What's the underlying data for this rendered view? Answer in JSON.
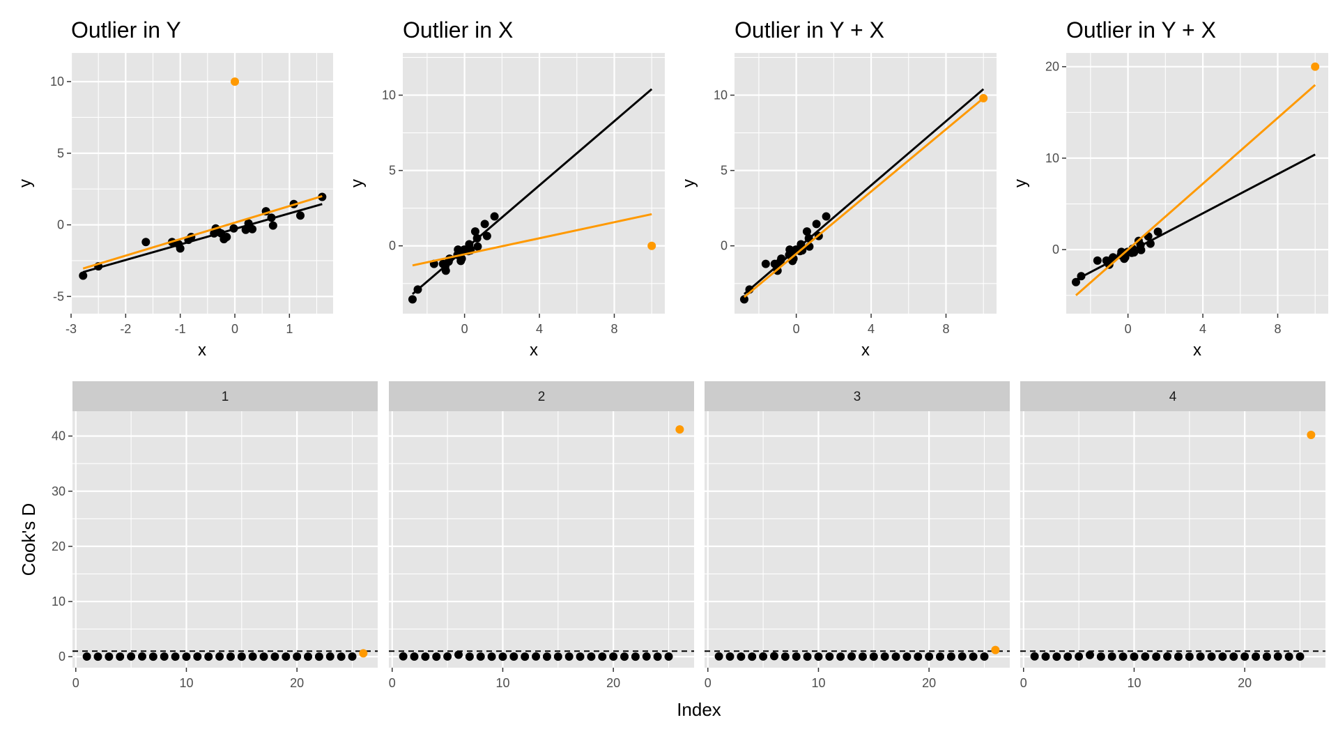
{
  "colors": {
    "panel_bg": "#e5e5e5",
    "grid": "#ffffff",
    "strip_bg": "#cccccc",
    "point": "#000000",
    "outlier": "#ff9900",
    "fit_all": "#ff9900",
    "fit_without": "#000000",
    "axis_text": "#4d4d4d",
    "title_text": "#000000"
  },
  "chart_data": [
    {
      "type": "scatter",
      "title": "Outlier in Y",
      "xlabel": "x",
      "ylabel": "y",
      "xlim": [
        -3.0,
        1.8
      ],
      "ylim": [
        -6.2,
        12.0
      ],
      "xticks": [
        -3,
        -2,
        -1,
        0,
        1
      ],
      "yticks": [
        -5,
        0,
        5,
        10
      ],
      "x": [
        -2.78,
        -2.5,
        -1.63,
        -1.15,
        -1.03,
        -1.0,
        -0.85,
        -0.8,
        -0.38,
        -0.35,
        -0.3,
        -0.25,
        -0.2,
        -0.15,
        -0.02,
        0.2,
        0.25,
        0.28,
        0.32,
        0.57,
        0.67,
        0.7,
        1.08,
        1.2,
        1.6
      ],
      "y": [
        -3.55,
        -2.9,
        -1.2,
        -1.2,
        -1.35,
        -1.65,
        -1.05,
        -0.85,
        -0.6,
        -0.25,
        -0.5,
        -0.6,
        -1.0,
        -0.85,
        -0.25,
        -0.35,
        0.1,
        -0.2,
        -0.3,
        0.95,
        0.5,
        -0.05,
        1.45,
        0.65,
        1.95
      ],
      "outlier": {
        "x": 0.0,
        "y": 10.0
      },
      "fit_all": {
        "x": [
          -2.78,
          1.6
        ],
        "y": [
          -3.05,
          2.0
        ]
      },
      "fit_without": {
        "x": [
          -2.78,
          1.6
        ],
        "y": [
          -3.3,
          1.45
        ]
      }
    },
    {
      "type": "scatter",
      "title": "Outlier in X",
      "xlabel": "x",
      "ylabel": "y",
      "xlim": [
        -3.3,
        10.7
      ],
      "ylim": [
        -4.5,
        12.8
      ],
      "xticks": [
        0,
        4,
        8
      ],
      "yticks": [
        0,
        5,
        10
      ],
      "x": [
        -2.78,
        -2.5,
        -1.63,
        -1.15,
        -1.03,
        -1.0,
        -0.85,
        -0.8,
        -0.38,
        -0.35,
        -0.3,
        -0.25,
        -0.2,
        -0.15,
        -0.02,
        0.2,
        0.25,
        0.28,
        0.32,
        0.57,
        0.67,
        0.7,
        1.08,
        1.2,
        1.6
      ],
      "y": [
        -3.55,
        -2.9,
        -1.2,
        -1.2,
        -1.35,
        -1.65,
        -1.05,
        -0.85,
        -0.6,
        -0.25,
        -0.5,
        -0.6,
        -1.0,
        -0.85,
        -0.25,
        -0.35,
        0.1,
        -0.2,
        -0.3,
        0.95,
        0.5,
        -0.05,
        1.45,
        0.65,
        1.95
      ],
      "outlier": {
        "x": 10.0,
        "y": 0.0
      },
      "fit_all": {
        "x": [
          -2.78,
          10.0
        ],
        "y": [
          -1.3,
          2.1
        ]
      },
      "fit_without": {
        "x": [
          -2.78,
          10.0
        ],
        "y": [
          -3.2,
          10.4
        ]
      }
    },
    {
      "type": "scatter",
      "title": "Outlier in Y + X",
      "xlabel": "x",
      "ylabel": "y",
      "xlim": [
        -3.3,
        10.7
      ],
      "ylim": [
        -4.5,
        12.8
      ],
      "xticks": [
        0,
        4,
        8
      ],
      "yticks": [
        0,
        5,
        10
      ],
      "x": [
        -2.78,
        -2.5,
        -1.63,
        -1.15,
        -1.03,
        -1.0,
        -0.85,
        -0.8,
        -0.38,
        -0.35,
        -0.3,
        -0.25,
        -0.2,
        -0.15,
        -0.02,
        0.2,
        0.25,
        0.28,
        0.32,
        0.57,
        0.67,
        0.7,
        1.08,
        1.2,
        1.6
      ],
      "y": [
        -3.55,
        -2.9,
        -1.2,
        -1.2,
        -1.35,
        -1.65,
        -1.05,
        -0.85,
        -0.6,
        -0.25,
        -0.5,
        -0.6,
        -1.0,
        -0.85,
        -0.25,
        -0.35,
        0.1,
        -0.2,
        -0.3,
        0.95,
        0.5,
        -0.05,
        1.45,
        0.65,
        1.95
      ],
      "outlier": {
        "x": 10.0,
        "y": 9.8
      },
      "fit_all": {
        "x": [
          -2.78,
          10.0
        ],
        "y": [
          -3.4,
          9.8
        ]
      },
      "fit_without": {
        "x": [
          -2.78,
          10.0
        ],
        "y": [
          -3.2,
          10.4
        ]
      }
    },
    {
      "type": "scatter",
      "title": "Outlier in Y + X",
      "xlabel": "x",
      "ylabel": "y",
      "xlim": [
        -3.3,
        10.7
      ],
      "ylim": [
        -7.0,
        21.5
      ],
      "xticks": [
        0,
        4,
        8
      ],
      "yticks": [
        0,
        10,
        20
      ],
      "x": [
        -2.78,
        -2.5,
        -1.63,
        -1.15,
        -1.03,
        -1.0,
        -0.85,
        -0.8,
        -0.38,
        -0.35,
        -0.3,
        -0.25,
        -0.2,
        -0.15,
        -0.02,
        0.2,
        0.25,
        0.28,
        0.32,
        0.57,
        0.67,
        0.7,
        1.08,
        1.2,
        1.6
      ],
      "y": [
        -3.55,
        -2.9,
        -1.2,
        -1.2,
        -1.35,
        -1.65,
        -1.05,
        -0.85,
        -0.6,
        -0.25,
        -0.5,
        -0.6,
        -1.0,
        -0.85,
        -0.25,
        -0.35,
        0.1,
        -0.2,
        -0.3,
        0.95,
        0.5,
        -0.05,
        1.45,
        0.65,
        1.95
      ],
      "outlier": {
        "x": 10.0,
        "y": 20.0
      },
      "fit_all": {
        "x": [
          -2.78,
          10.0
        ],
        "y": [
          -5.0,
          18.0
        ]
      },
      "fit_without": {
        "x": [
          -2.78,
          10.0
        ],
        "y": [
          -3.3,
          10.4
        ]
      }
    },
    {
      "type": "scatter",
      "facets": [
        "1",
        "2",
        "3",
        "4"
      ],
      "xlabel": "Index",
      "ylabel": "Cook's D",
      "xlim": [
        -0.3,
        27.3
      ],
      "ylim": [
        -2.0,
        44.5
      ],
      "xticks": [
        0,
        10,
        20
      ],
      "yticks": [
        0,
        10,
        20,
        30,
        40
      ],
      "reference_line": 1.0,
      "series": [
        {
          "values": [
            0.02,
            0.01,
            0.0,
            0.01,
            0.03,
            0.04,
            0.0,
            0.02,
            0.01,
            0.0,
            0.02,
            0.01,
            0.03,
            0.0,
            0.01,
            0.02,
            0.0,
            0.01,
            0.0,
            0.02,
            0.01,
            0.0,
            0.03,
            0.01,
            0.02
          ],
          "outlier_index": 26,
          "outlier_value": 0.6
        },
        {
          "values": [
            0.05,
            0.02,
            0.0,
            0.01,
            0.03,
            0.35,
            0.0,
            0.02,
            0.01,
            0.0,
            0.02,
            0.01,
            0.03,
            0.0,
            0.01,
            0.02,
            0.0,
            0.01,
            0.0,
            0.02,
            0.01,
            0.0,
            0.03,
            0.01,
            0.02
          ],
          "outlier_index": 26,
          "outlier_value": 41.2
        },
        {
          "values": [
            0.05,
            0.02,
            0.0,
            0.01,
            0.03,
            0.1,
            0.0,
            0.02,
            0.01,
            0.0,
            0.02,
            0.01,
            0.03,
            0.0,
            0.01,
            0.02,
            0.0,
            0.01,
            0.0,
            0.02,
            0.01,
            0.0,
            0.03,
            0.01,
            0.02
          ],
          "outlier_index": 26,
          "outlier_value": 1.2
        },
        {
          "values": [
            0.05,
            0.02,
            0.0,
            0.01,
            0.03,
            0.3,
            0.0,
            0.02,
            0.01,
            0.0,
            0.02,
            0.01,
            0.03,
            0.0,
            0.01,
            0.02,
            0.0,
            0.01,
            0.0,
            0.02,
            0.01,
            0.0,
            0.03,
            0.01,
            0.02
          ],
          "outlier_index": 26,
          "outlier_value": 40.2
        }
      ]
    }
  ]
}
